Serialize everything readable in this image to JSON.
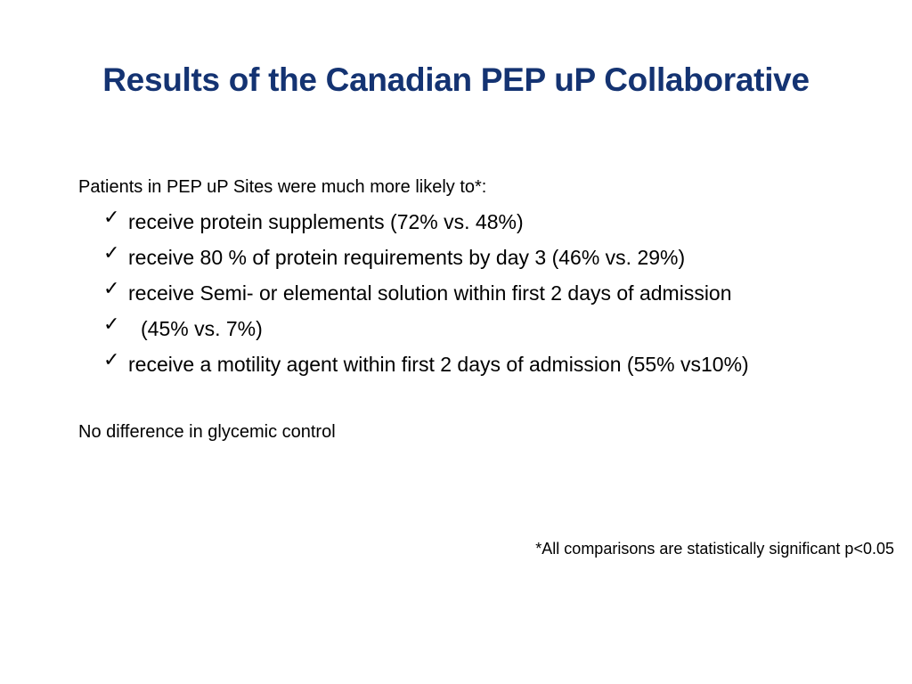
{
  "slide": {
    "title": "Results of the Canadian PEP uP Collaborative",
    "intro": "Patients in PEP uP Sites were much more likely to*:",
    "bullets": [
      {
        "icon": "checkmark-icon",
        "text": "receive protein supplements (72% vs. 48%)"
      },
      {
        "icon": "checkmark-icon",
        "text": "receive 80 % of protein requirements by day 3 (46% vs. 29%)"
      },
      {
        "icon": "checkmark-icon",
        "text": "receive Semi- or elemental solution within first 2 days of admission"
      },
      {
        "icon": "checkmark-icon",
        "text": "(45% vs. 7%)"
      },
      {
        "icon": "checkmark-icon",
        "text": "receive a motility agent within first 2 days of admission (55% vs10%)"
      }
    ],
    "note": "No difference in glycemic control",
    "footnote": "*All comparisons are statistically significant p<0.05",
    "colors": {
      "title": "#143372",
      "text": "#000000",
      "background": "#ffffff"
    }
  }
}
